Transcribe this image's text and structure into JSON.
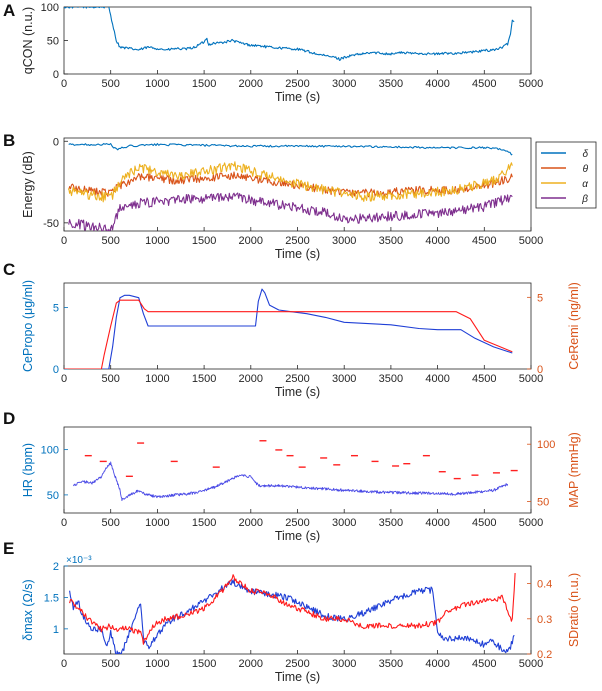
{
  "colors": {
    "axis": "#262626",
    "blue_label": "#0072bd",
    "red_label": "#d95319",
    "delta": "#0072bd",
    "theta": "#d95319",
    "alpha": "#edb120",
    "beta": "#7e2f8e",
    "prop_line": "#1f3fd6",
    "remi_line": "#ff1a1a",
    "hr_line": "#4b4be6",
    "map_line": "#ff2020"
  },
  "chart_data": [
    {
      "panel": "A",
      "type": "line",
      "xlabel": "Time (s)",
      "ylabel": "qCON (n.u.)",
      "xlim": [
        0,
        5000
      ],
      "ylim": [
        0,
        100
      ],
      "xticks": [
        "0",
        "500",
        "1000",
        "1500",
        "2000",
        "2500",
        "3000",
        "3500",
        "4000",
        "4500",
        "5000"
      ],
      "yticks": [
        "0",
        "50",
        "100"
      ],
      "series": [
        {
          "name": "qCON",
          "color": "#0072bd",
          "x": [
            0,
            100,
            480,
            520,
            560,
            600,
            700,
            800,
            900,
            1000,
            1100,
            1200,
            1300,
            1400,
            1500,
            1530,
            1550,
            1600,
            1700,
            1800,
            1900,
            2000,
            2100,
            2200,
            2300,
            2400,
            2500,
            2600,
            2700,
            2800,
            2900,
            2950,
            3000,
            3100,
            3200,
            3300,
            3400,
            3500,
            3600,
            3700,
            3800,
            3900,
            4000,
            4100,
            4200,
            4300,
            4400,
            4500,
            4600,
            4700,
            4750,
            4780,
            4800,
            4820
          ],
          "y": [
            100,
            100,
            100,
            75,
            50,
            40,
            38,
            36,
            40,
            38,
            36,
            38,
            37,
            40,
            48,
            53,
            44,
            46,
            47,
            50,
            46,
            43,
            42,
            40,
            39,
            38,
            37,
            34,
            30,
            27,
            25,
            22,
            25,
            28,
            30,
            32,
            31,
            30,
            32,
            31,
            31,
            30,
            30,
            31,
            31,
            32,
            33,
            35,
            36,
            40,
            45,
            60,
            80,
            78
          ]
        }
      ]
    },
    {
      "panel": "B",
      "type": "line",
      "xlabel": "Time (s)",
      "ylabel": "Energy (dB)",
      "xlim": [
        0,
        5000
      ],
      "ylim": [
        -55,
        2
      ],
      "xticks": [
        "0",
        "500",
        "1000",
        "1500",
        "2000",
        "2500",
        "3000",
        "3500",
        "4000",
        "4500",
        "5000"
      ],
      "yticks": [
        "-50",
        "0"
      ],
      "legend": [
        "δ",
        "θ",
        "α",
        "β"
      ],
      "legend_position": "right",
      "series": [
        {
          "name": "δ",
          "color": "#0072bd",
          "x": [
            50,
            500,
            560,
            700,
            1000,
            2000,
            3000,
            4000,
            4500,
            4700,
            4800
          ],
          "y": [
            -2,
            -2,
            -5,
            -3,
            -2,
            -3,
            -3,
            -4,
            -4,
            -5,
            -8
          ]
        },
        {
          "name": "θ",
          "color": "#d95319",
          "x": [
            50,
            300,
            500,
            600,
            800,
            1200,
            1800,
            2400,
            2800,
            3200,
            3800,
            4200,
            4600,
            4800
          ],
          "y": [
            -28,
            -30,
            -32,
            -27,
            -22,
            -24,
            -21,
            -26,
            -30,
            -32,
            -30,
            -30,
            -26,
            -22
          ]
        },
        {
          "name": "α",
          "color": "#edb120",
          "x": [
            50,
            300,
            500,
            600,
            800,
            1200,
            1800,
            2400,
            2800,
            3200,
            3800,
            4200,
            4600,
            4800
          ],
          "y": [
            -30,
            -33,
            -35,
            -25,
            -16,
            -22,
            -15,
            -25,
            -30,
            -34,
            -32,
            -30,
            -24,
            -15
          ]
        },
        {
          "name": "β",
          "color": "#7e2f8e",
          "x": [
            50,
            300,
            500,
            600,
            800,
            1200,
            1800,
            2400,
            2800,
            3000,
            3500,
            4000,
            4500,
            4800
          ],
          "y": [
            -50,
            -52,
            -55,
            -40,
            -38,
            -36,
            -34,
            -40,
            -44,
            -48,
            -46,
            -44,
            -40,
            -34
          ]
        }
      ]
    },
    {
      "panel": "C",
      "type": "line",
      "xlabel": "Time (s)",
      "ylabel": "CePropo (μg/ml)",
      "ylabel_right": "CeRemi (ng/ml)",
      "xlim": [
        0,
        5000
      ],
      "ylim": [
        0,
        7
      ],
      "ylim_right": [
        0,
        6
      ],
      "xticks": [
        "0",
        "500",
        "1000",
        "1500",
        "2000",
        "2500",
        "3000",
        "3500",
        "4000",
        "4500",
        "5000"
      ],
      "yticks": [
        "0",
        "5"
      ],
      "yticks_right": [
        "0",
        "5"
      ],
      "series": [
        {
          "name": "CePropo",
          "color": "#1f3fd6",
          "axis": "left",
          "x": [
            0,
            480,
            520,
            560,
            600,
            650,
            700,
            800,
            850,
            900,
            1000,
            2050,
            2080,
            2120,
            2150,
            2200,
            2300,
            2400,
            2600,
            2800,
            3000,
            3500,
            3800,
            4000,
            4250,
            4400,
            4600,
            4800
          ],
          "y": [
            0,
            0,
            1.8,
            4.2,
            5.8,
            6.0,
            6.0,
            5.8,
            4.5,
            3.5,
            3.5,
            3.5,
            5.5,
            6.5,
            6.2,
            5.2,
            4.8,
            4.7,
            4.5,
            4.2,
            3.8,
            3.6,
            3.3,
            3.2,
            3.2,
            2.5,
            1.8,
            1.3
          ]
        },
        {
          "name": "CeRemi",
          "color": "#ff1a1a",
          "axis": "right",
          "x": [
            0,
            400,
            430,
            500,
            560,
            600,
            800,
            860,
            900,
            2050,
            2100,
            4200,
            4350,
            4500,
            4800
          ],
          "y": [
            0,
            0,
            1.0,
            3.0,
            4.6,
            4.8,
            4.8,
            4.2,
            4.0,
            4.0,
            4.0,
            4.0,
            3.5,
            2.0,
            1.2
          ]
        }
      ]
    },
    {
      "panel": "D",
      "type": "scatter",
      "xlabel": "Time (s)",
      "ylabel": "HR (bpm)",
      "ylabel_right": "MAP (mmHg)",
      "xlim": [
        0,
        5000
      ],
      "ylim": [
        30,
        125
      ],
      "ylim_right": [
        40,
        115
      ],
      "xticks": [
        "0",
        "500",
        "1000",
        "1500",
        "2000",
        "2500",
        "3000",
        "3500",
        "4000",
        "4500",
        "5000"
      ],
      "yticks": [
        "50",
        "100"
      ],
      "yticks_right": [
        "50",
        "100"
      ],
      "series": [
        {
          "name": "HR",
          "color": "#4b4be6",
          "axis": "left",
          "style": "line",
          "x": [
            100,
            200,
            300,
            400,
            450,
            500,
            550,
            600,
            620,
            800,
            850,
            900,
            1000,
            1200,
            1400,
            1600,
            1800,
            1900,
            2000,
            2050,
            2100,
            2300,
            2600,
            3000,
            3400,
            3800,
            4200,
            4600,
            4750
          ],
          "y": [
            60,
            65,
            63,
            70,
            80,
            85,
            70,
            55,
            45,
            55,
            52,
            50,
            48,
            50,
            52,
            58,
            68,
            72,
            70,
            63,
            60,
            60,
            58,
            55,
            53,
            52,
            51,
            55,
            62
          ]
        },
        {
          "name": "MAP",
          "color": "#ff2020",
          "axis": "right",
          "style": "dash",
          "x": [
            260,
            420,
            700,
            820,
            1180,
            1630,
            2130,
            2300,
            2420,
            2550,
            2780,
            2920,
            3110,
            3330,
            3550,
            3670,
            3880,
            4050,
            4210,
            4400,
            4630,
            4820
          ],
          "y": [
            90,
            85,
            72,
            101,
            85,
            80,
            103,
            95,
            90,
            80,
            88,
            82,
            90,
            85,
            81,
            83,
            90,
            76,
            70,
            73,
            75,
            77
          ]
        }
      ]
    },
    {
      "panel": "E",
      "type": "line",
      "xlabel": "Time (s)",
      "ylabel": "δmax (Ω/s)",
      "ylabel_right": "SDratio (n.u.)",
      "y_exponent": "×10⁻³",
      "xlim": [
        0,
        5000
      ],
      "ylim": [
        0.6,
        2.0
      ],
      "ylim_right": [
        0.2,
        0.45
      ],
      "xticks": [
        "0",
        "500",
        "1000",
        "1500",
        "2000",
        "2500",
        "3000",
        "3500",
        "4000",
        "4500",
        "5000"
      ],
      "yticks": [
        "1",
        "1.5",
        "2"
      ],
      "yticks_right": [
        "0.2",
        "0.3",
        "0.4"
      ],
      "series": [
        {
          "name": "δmax",
          "color": "#1f3fd6",
          "axis": "left",
          "x": [
            60,
            100,
            150,
            200,
            300,
            400,
            450,
            500,
            560,
            600,
            640,
            820,
            850,
            900,
            950,
            1000,
            1100,
            1300,
            1500,
            1700,
            1800,
            2000,
            2200,
            2400,
            2600,
            2800,
            3000,
            3200,
            3500,
            3800,
            3950,
            4000,
            4050,
            4300,
            4500,
            4600,
            4700,
            4780,
            4820
          ],
          "y": [
            1.6,
            1.35,
            1.45,
            1.2,
            1.0,
            1.0,
            0.7,
            0.95,
            0.6,
            0.6,
            0.7,
            1.4,
            0.85,
            0.7,
            0.8,
            0.9,
            1.1,
            1.25,
            1.45,
            1.65,
            1.75,
            1.6,
            1.55,
            1.5,
            1.35,
            1.2,
            1.15,
            1.25,
            1.45,
            1.6,
            1.62,
            0.95,
            0.85,
            0.85,
            0.75,
            0.8,
            0.65,
            0.7,
            0.9
          ]
        },
        {
          "name": "SDratio",
          "color": "#ff1a1a",
          "axis": "right",
          "x": [
            60,
            120,
            200,
            260,
            300,
            400,
            500,
            580,
            600,
            820,
            850,
            900,
            1000,
            1100,
            1300,
            1500,
            1700,
            1800,
            1900,
            2000,
            2200,
            2400,
            2600,
            2800,
            3000,
            3200,
            3500,
            3800,
            4000,
            4100,
            4300,
            4500,
            4700,
            4770,
            4800,
            4830
          ],
          "y": [
            0.35,
            0.34,
            0.32,
            0.3,
            0.29,
            0.27,
            0.28,
            0.27,
            0.28,
            0.26,
            0.23,
            0.26,
            0.29,
            0.3,
            0.31,
            0.33,
            0.38,
            0.42,
            0.4,
            0.38,
            0.37,
            0.34,
            0.32,
            0.3,
            0.3,
            0.28,
            0.28,
            0.28,
            0.29,
            0.32,
            0.34,
            0.35,
            0.36,
            0.3,
            0.3,
            0.43
          ]
        }
      ]
    }
  ]
}
